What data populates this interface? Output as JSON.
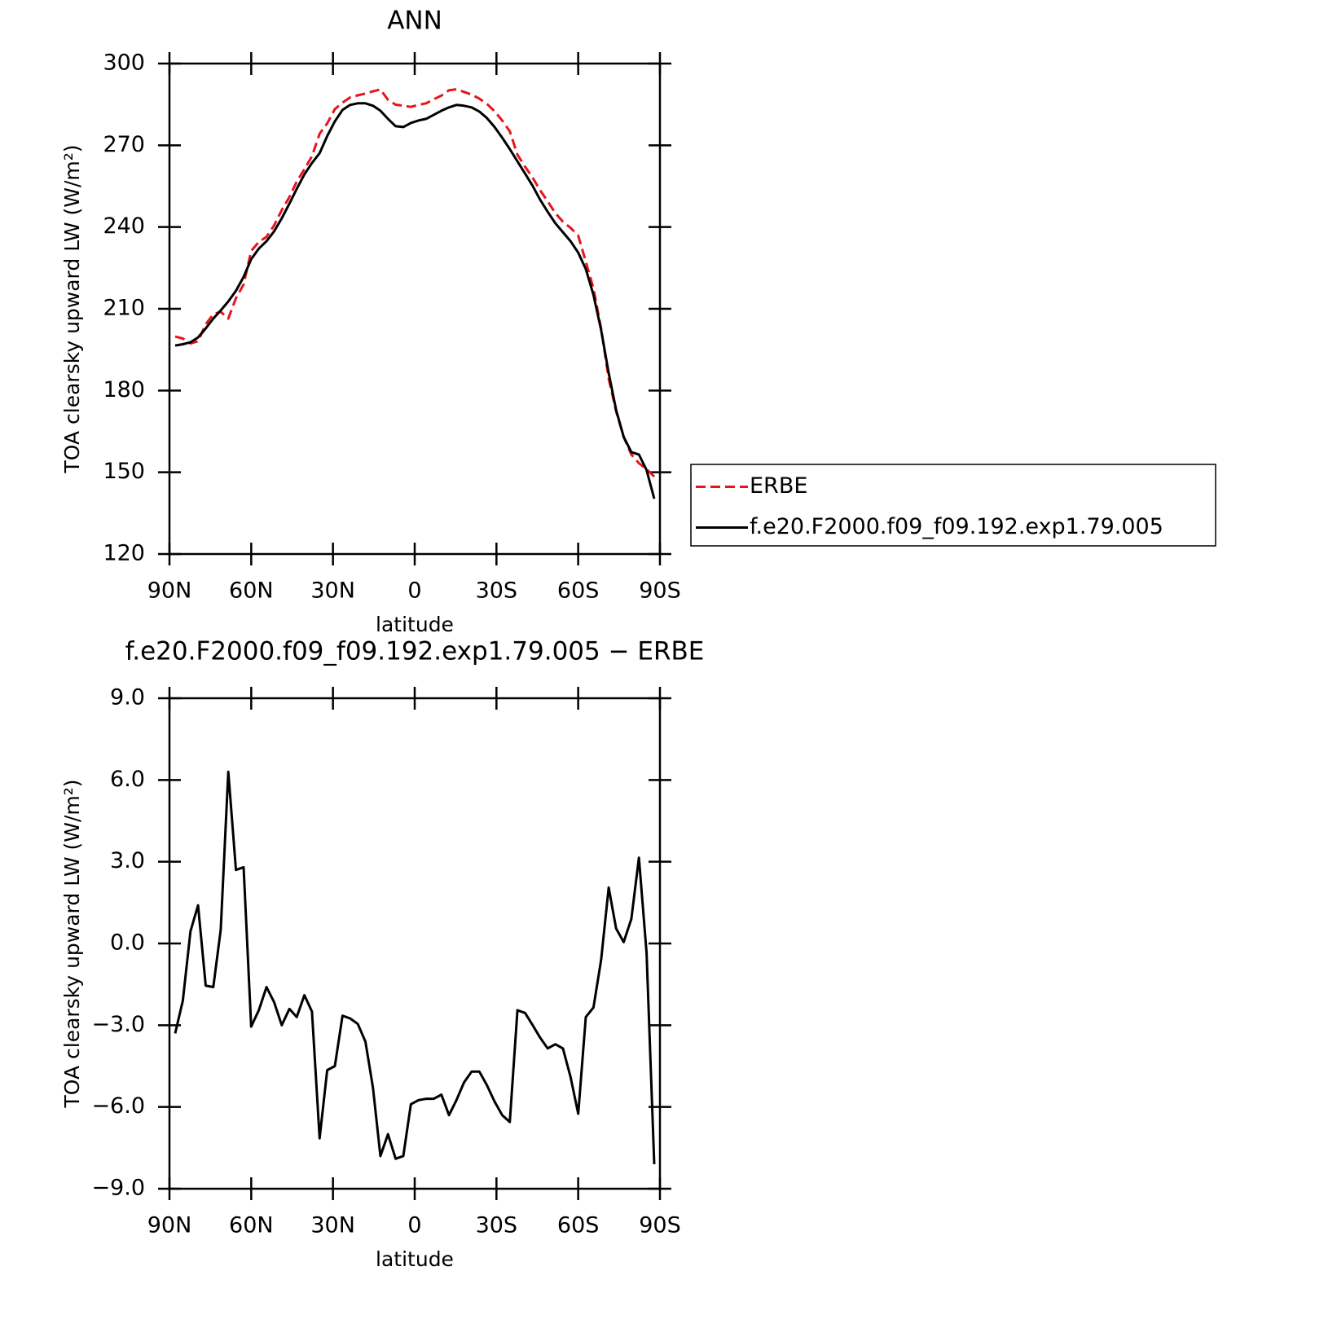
{
  "chart_data": [
    {
      "type": "line",
      "title": "ANN",
      "xlabel": "latitude",
      "ylabel": "TOA clearsky upward LW (W/m²)",
      "x": [
        87.9,
        85.1,
        82.3,
        79.5,
        76.7,
        73.9,
        71.2,
        68.4,
        65.6,
        62.8,
        60.0,
        57.2,
        54.4,
        51.6,
        48.8,
        46.0,
        43.3,
        40.5,
        37.7,
        34.9,
        32.1,
        29.3,
        26.5,
        23.7,
        20.9,
        18.1,
        15.3,
        12.6,
        9.8,
        7.0,
        4.2,
        1.4,
        -1.4,
        -4.2,
        -7.0,
        -9.8,
        -12.6,
        -15.3,
        -18.1,
        -20.9,
        -23.7,
        -26.5,
        -29.3,
        -32.1,
        -34.9,
        -37.7,
        -40.5,
        -43.3,
        -46.0,
        -48.8,
        -51.6,
        -54.4,
        -57.2,
        -60.0,
        -62.8,
        -65.6,
        -68.4,
        -71.2,
        -73.9,
        -76.7,
        -79.5,
        -82.3,
        -85.1,
        -87.9
      ],
      "xlim": [
        90,
        -90
      ],
      "xticks": [
        {
          "value": 90,
          "label": "90N"
        },
        {
          "value": 60,
          "label": "60N"
        },
        {
          "value": 30,
          "label": "30N"
        },
        0,
        {
          "value": -30,
          "label": "30S"
        },
        {
          "value": -60,
          "label": "60S"
        },
        {
          "value": -90,
          "label": "90S"
        }
      ],
      "ylim": [
        120,
        300
      ],
      "yticks": [
        120,
        150,
        180,
        210,
        240,
        270,
        300
      ],
      "legend": "right",
      "series": [
        {
          "name": "ERBE",
          "color": "#e8141a",
          "dash": true,
          "values": [
            199.8,
            199.1,
            197.25,
            198.1,
            204.35,
            208.0,
            208.9,
            206.4,
            213.9,
            218.9,
            231.25,
            234.55,
            236.4,
            240.55,
            246.2,
            251.0,
            256.7,
            261.2,
            266.0,
            274.25,
            278.05,
            283.3,
            285.65,
            287.55,
            288.35,
            289.0,
            289.8,
            290.5,
            286.7,
            284.9,
            284.5,
            284.1,
            284.85,
            285.4,
            286.9,
            288.25,
            290.2,
            290.55,
            289.6,
            288.6,
            287.1,
            285.2,
            282.5,
            279.1,
            275.15,
            266.55,
            262.15,
            258.1,
            253.55,
            249.45,
            245.1,
            241.95,
            239.7,
            236.85,
            227.3,
            217.45,
            202.8,
            184.35,
            172.35,
            162.95,
            156.5,
            153.35,
            151.15,
            148.4
          ]
        },
        {
          "name": "f.e20.F2000.f09_f09.192.exp1.79.005",
          "color": "#000000",
          "dash": false,
          "values": [
            196.5,
            197,
            197.7,
            199.5,
            202.8,
            206.4,
            209.4,
            212.7,
            216.6,
            221.7,
            228.2,
            232.1,
            234.8,
            238.4,
            243.2,
            248.6,
            254,
            259.3,
            263.5,
            267.1,
            273.4,
            278.8,
            283,
            284.8,
            285.4,
            285.4,
            284.5,
            282.7,
            279.7,
            277,
            276.7,
            278.2,
            279.1,
            279.7,
            281.2,
            282.7,
            283.9,
            284.8,
            284.5,
            283.9,
            282.4,
            280,
            276.7,
            272.8,
            268.6,
            264.1,
            259.6,
            255.1,
            250.1,
            245.6,
            241.4,
            238.1,
            234.8,
            230.6,
            224.6,
            215.1,
            202.2,
            186.4,
            172.9,
            163,
            157.4,
            156.5,
            150.8,
            140.3
          ]
        }
      ]
    },
    {
      "type": "line",
      "title": "f.e20.F2000.f09_f09.192.exp1.79.005 − ERBE",
      "xlabel": "latitude",
      "ylabel": "TOA clearsky upward LW (W/m²)",
      "x": [
        87.9,
        85.1,
        82.3,
        79.5,
        76.7,
        73.9,
        71.2,
        68.4,
        65.6,
        62.8,
        60.0,
        57.2,
        54.4,
        51.6,
        48.8,
        46.0,
        43.3,
        40.5,
        37.7,
        34.9,
        32.1,
        29.3,
        26.5,
        23.7,
        20.9,
        18.1,
        15.3,
        12.6,
        9.8,
        7.0,
        4.2,
        1.4,
        -1.4,
        -4.2,
        -7.0,
        -9.8,
        -12.6,
        -15.3,
        -18.1,
        -20.9,
        -23.7,
        -26.5,
        -29.3,
        -32.1,
        -34.9,
        -37.7,
        -40.5,
        -43.3,
        -46.0,
        -48.8,
        -51.6,
        -54.4,
        -57.2,
        -60.0,
        -62.8,
        -65.6,
        -68.4,
        -71.2,
        -73.9,
        -76.7,
        -79.5,
        -82.3,
        -85.1,
        -87.9
      ],
      "xlim": [
        90,
        -90
      ],
      "xticks": [
        {
          "value": 90,
          "label": "90N"
        },
        {
          "value": 60,
          "label": "60N"
        },
        {
          "value": 30,
          "label": "30N"
        },
        0,
        {
          "value": -30,
          "label": "30S"
        },
        {
          "value": -60,
          "label": "60S"
        },
        {
          "value": -90,
          "label": "90S"
        }
      ],
      "ylim": [
        -9,
        9
      ],
      "yticks": [
        {
          "value": -9,
          "label": "−9.0"
        },
        {
          "value": -6,
          "label": "−6.0"
        },
        {
          "value": -3,
          "label": "−3.0"
        },
        {
          "value": 0,
          "label": "0.0"
        },
        {
          "value": 3,
          "label": "3.0"
        },
        {
          "value": 6,
          "label": "6.0"
        },
        {
          "value": 9,
          "label": "9.0"
        }
      ],
      "series": [
        {
          "color": "#000000",
          "dash": false,
          "values": [
            -3.3,
            -2.1,
            0.45,
            1.4,
            -1.55,
            -1.6,
            0.5,
            6.3,
            2.7,
            2.8,
            -3.05,
            -2.45,
            -1.6,
            -2.15,
            -3.0,
            -2.4,
            -2.7,
            -1.9,
            -2.5,
            -7.15,
            -4.65,
            -4.5,
            -2.65,
            -2.75,
            -2.95,
            -3.6,
            -5.3,
            -7.8,
            -7.0,
            -7.9,
            -7.8,
            -5.9,
            -5.75,
            -5.7,
            -5.7,
            -5.55,
            -6.3,
            -5.75,
            -5.1,
            -4.7,
            -4.7,
            -5.2,
            -5.8,
            -6.3,
            -6.55,
            -2.45,
            -2.55,
            -3.0,
            -3.45,
            -3.85,
            -3.7,
            -3.85,
            -4.9,
            -6.25,
            -2.7,
            -2.35,
            -0.6,
            2.05,
            0.55,
            0.05,
            0.9,
            3.15,
            -0.35,
            -8.1
          ]
        }
      ]
    }
  ]
}
